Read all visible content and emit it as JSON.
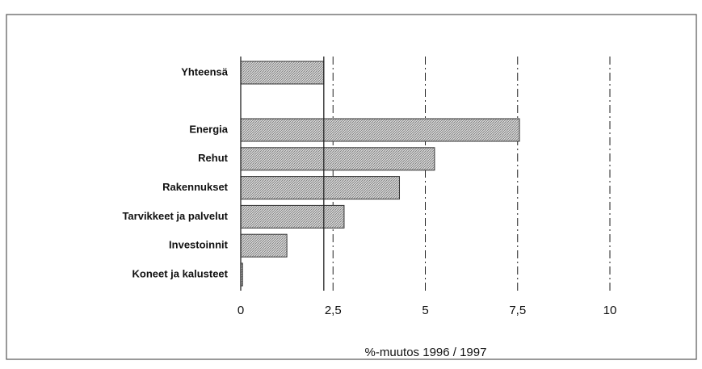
{
  "chart_data": {
    "type": "barh",
    "xlabel": "%-muutos 1996 / 1997",
    "categories": [
      "Yhteensä",
      "Energia",
      "Rehut",
      "Rakennukset",
      "Tarvikkeet ja palvelut",
      "Investoinnit",
      "Koneet ja kalusteet"
    ],
    "values": [
      2.25,
      7.55,
      5.25,
      4.3,
      2.8,
      1.25,
      0.05
    ],
    "color": "#bcbcbc",
    "xlim": [
      0,
      10
    ],
    "xticks": [
      0,
      {
        "value": 2.5,
        "label": "2,5"
      },
      5,
      {
        "value": 7.5,
        "label": "7,5"
      },
      10
    ],
    "grid": true
  }
}
